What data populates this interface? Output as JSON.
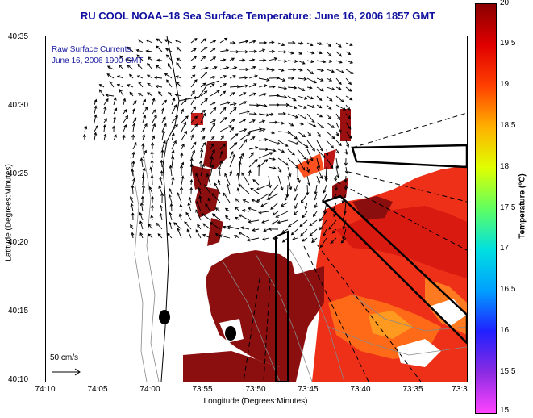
{
  "title": "RU COOL  NOAA–18  Sea Surface Temperature:  June 16, 2006 1857 GMT",
  "legend": {
    "line1": "Raw Surface Currents",
    "line2": "June 16, 2006 1900 GMT"
  },
  "axes": {
    "xlabel": "Longitude (Degrees:Minutes)",
    "ylabel": "Latitude (Degrees:Minutes)",
    "xticks": [
      "74:10",
      "74:05",
      "74:00",
      "73:55",
      "73:50",
      "73:45",
      "73:40",
      "73:35",
      "73:3"
    ],
    "yticks": [
      "40:35",
      "40:30",
      "40:25",
      "40:20",
      "40:15",
      "40:10"
    ]
  },
  "scale_label": "50 cm/s",
  "colorbar": {
    "label": "Temperature (°C)",
    "ticks": [
      "20",
      "19.5",
      "19",
      "18.5",
      "18",
      "17.5",
      "17",
      "16.5",
      "16",
      "15.5",
      "15"
    ],
    "colors": [
      "#ff44ff",
      "#8a2be2",
      "#2020ff",
      "#00a0ff",
      "#00e0e0",
      "#60ff60",
      "#e0ff00",
      "#ffb000",
      "#ff4000",
      "#e00000",
      "#8a0000"
    ]
  }
}
